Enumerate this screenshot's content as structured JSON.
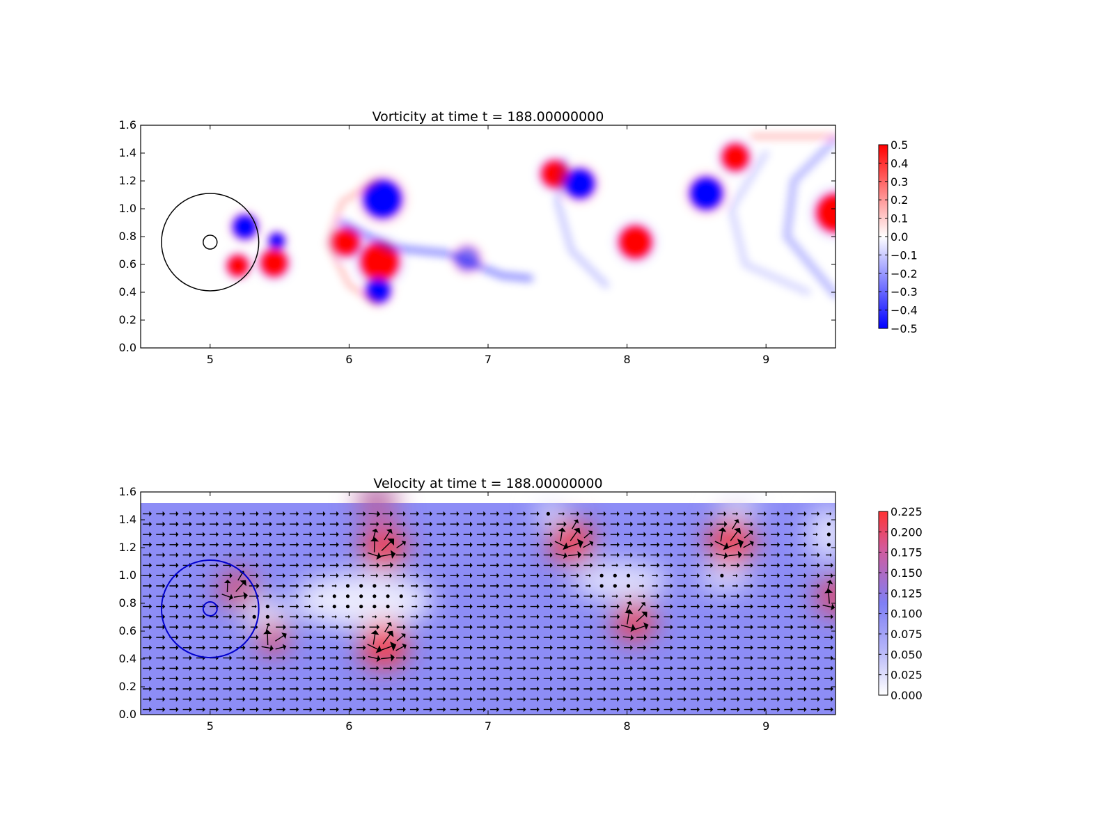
{
  "chart_data": [
    {
      "type": "heatmap",
      "title": "Vorticity at time t =   188.00000000",
      "xlabel": "",
      "ylabel": "",
      "xlim": [
        4.5,
        9.5
      ],
      "ylim": [
        0.0,
        1.6
      ],
      "x_ticks": [
        "5",
        "6",
        "7",
        "8",
        "9"
      ],
      "y_ticks": [
        "0.0",
        "0.2",
        "0.4",
        "0.6",
        "0.8",
        "1.0",
        "1.2",
        "1.4",
        "1.6"
      ],
      "colorbar": {
        "min": -0.5,
        "max": 0.5,
        "colormap": "bwr",
        "tick_labels": [
          "0.5",
          "0.4",
          "0.3",
          "0.2",
          "0.1",
          "0.0",
          "−0.1",
          "−0.2",
          "−0.3",
          "−0.4",
          "−0.5"
        ],
        "tick_values": [
          0.5,
          0.4,
          0.3,
          0.2,
          0.1,
          0.0,
          -0.1,
          -0.2,
          -0.3,
          -0.4,
          -0.5
        ]
      },
      "colors": {
        "positive": "#ff0000",
        "negative": "#0000ff",
        "zero": "#ffffff",
        "circle": "#000000"
      },
      "vortices": [
        {
          "x": 5.25,
          "y": 0.87,
          "r": 0.09,
          "sign": -1
        },
        {
          "x": 5.48,
          "y": 0.77,
          "r": 0.06,
          "sign": -1
        },
        {
          "x": 5.2,
          "y": 0.59,
          "r": 0.08,
          "sign": 1
        },
        {
          "x": 5.46,
          "y": 0.61,
          "r": 0.1,
          "sign": 1
        },
        {
          "x": 6.24,
          "y": 1.07,
          "r": 0.14,
          "sign": -1
        },
        {
          "x": 5.98,
          "y": 0.76,
          "r": 0.1,
          "sign": 1
        },
        {
          "x": 6.22,
          "y": 0.62,
          "r": 0.14,
          "sign": 1
        },
        {
          "x": 6.21,
          "y": 0.41,
          "r": 0.09,
          "sign": -1
        },
        {
          "x": 6.85,
          "y": 0.64,
          "r": 0.09,
          "sign": -0.5
        },
        {
          "x": 7.48,
          "y": 1.25,
          "r": 0.1,
          "sign": 1
        },
        {
          "x": 7.66,
          "y": 1.18,
          "r": 0.11,
          "sign": -1
        },
        {
          "x": 8.06,
          "y": 0.76,
          "r": 0.12,
          "sign": 1
        },
        {
          "x": 8.57,
          "y": 1.11,
          "r": 0.12,
          "sign": -1
        },
        {
          "x": 8.78,
          "y": 1.37,
          "r": 0.1,
          "sign": 1
        },
        {
          "x": 9.5,
          "y": 0.97,
          "r": 0.14,
          "sign": 1
        }
      ],
      "circles": [
        {
          "x": 5.0,
          "y": 0.76,
          "r": 0.35
        },
        {
          "x": 5.0,
          "y": 0.76,
          "r": 0.05
        }
      ]
    },
    {
      "type": "heatmap",
      "title": "Velocity at time t =   188.00000000",
      "xlabel": "",
      "ylabel": "",
      "xlim": [
        4.5,
        9.5
      ],
      "ylim": [
        0.0,
        1.6
      ],
      "x_ticks": [
        "5",
        "6",
        "7",
        "8",
        "9"
      ],
      "y_ticks": [
        "0.0",
        "0.2",
        "0.4",
        "0.6",
        "0.8",
        "1.0",
        "1.2",
        "1.4",
        "1.6"
      ],
      "field_top": 1.52,
      "colorbar": {
        "min": 0.0,
        "max": 0.225,
        "colormap": "white-blue-red",
        "tick_labels": [
          "0.225",
          "0.200",
          "0.175",
          "0.150",
          "0.125",
          "0.100",
          "0.075",
          "0.050",
          "0.025",
          "0.000"
        ],
        "tick_values": [
          0.225,
          0.2,
          0.175,
          0.15,
          0.125,
          0.1,
          0.075,
          0.05,
          0.025,
          0.0
        ]
      },
      "colors": {
        "low": "#ffffff",
        "mid": "#7f7ff5",
        "high": "#ff3333",
        "arrows": "#000000",
        "circle": "#0000cc"
      },
      "base_speed": 0.1,
      "fast_spots": [
        {
          "x": 6.25,
          "y": 1.2,
          "r": 0.16,
          "v": 0.22
        },
        {
          "x": 6.25,
          "y": 0.5,
          "r": 0.17,
          "v": 0.225
        },
        {
          "x": 7.6,
          "y": 1.24,
          "r": 0.16,
          "v": 0.22
        },
        {
          "x": 8.75,
          "y": 1.24,
          "r": 0.17,
          "v": 0.22
        },
        {
          "x": 8.05,
          "y": 0.67,
          "r": 0.15,
          "v": 0.21
        },
        {
          "x": 5.2,
          "y": 0.9,
          "r": 0.14,
          "v": 0.19
        },
        {
          "x": 5.45,
          "y": 0.55,
          "r": 0.12,
          "v": 0.2
        },
        {
          "x": 9.5,
          "y": 0.85,
          "r": 0.14,
          "v": 0.2
        },
        {
          "x": 6.2,
          "y": 1.52,
          "r": 0.15,
          "v": 0.16
        }
      ],
      "slow_spots": [
        {
          "x": 6.1,
          "y": 0.82,
          "rx": 0.5,
          "ry": 0.2,
          "v": 0.01
        },
        {
          "x": 5.4,
          "y": 0.72,
          "rx": 0.18,
          "ry": 0.12,
          "v": 0.02
        },
        {
          "x": 7.95,
          "y": 0.96,
          "rx": 0.35,
          "ry": 0.14,
          "v": 0.02
        },
        {
          "x": 8.7,
          "y": 0.98,
          "rx": 0.2,
          "ry": 0.1,
          "v": 0.03
        },
        {
          "x": 7.45,
          "y": 1.45,
          "rx": 0.1,
          "ry": 0.1,
          "v": 0.02
        },
        {
          "x": 8.8,
          "y": 1.5,
          "rx": 0.15,
          "ry": 0.08,
          "v": 0.02
        },
        {
          "x": 9.45,
          "y": 1.3,
          "rx": 0.15,
          "ry": 0.2,
          "v": 0.02
        }
      ],
      "circles": [
        {
          "x": 5.0,
          "y": 0.76,
          "r": 0.35
        },
        {
          "x": 5.0,
          "y": 0.76,
          "r": 0.05
        }
      ]
    }
  ]
}
